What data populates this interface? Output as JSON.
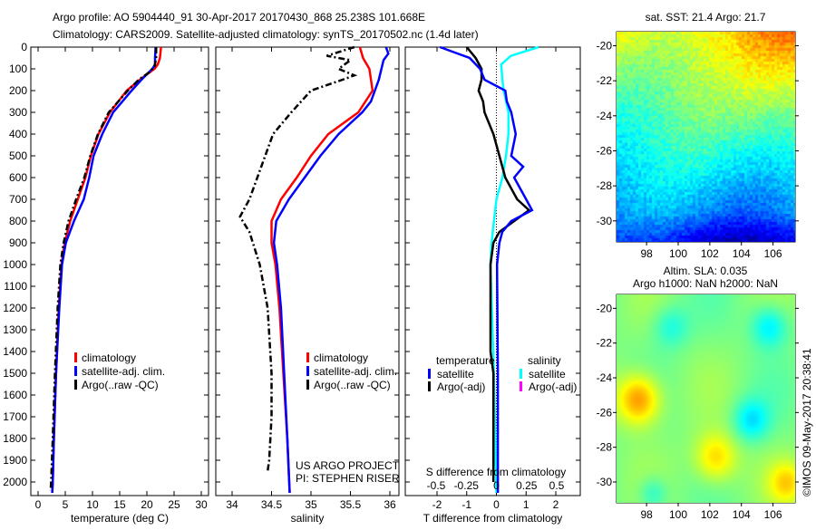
{
  "title": {
    "line1": "Argo profile: AO 5904440_91 30-Apr-2017 20170430_868 25.238S 101.668E",
    "line2": "Climatology: CARS2009. Satellite-adjusted climatology: synTS_20170502.nc (1.4d later)"
  },
  "colors": {
    "climatology": "#ff0000",
    "satellite": "#0000ff",
    "argo": "#000000",
    "sal_satellite": "#00ffff",
    "sal_argo": "#ff00ff"
  },
  "chart_data": [
    {
      "type": "line",
      "id": "temperature",
      "xlabel": "temperature (deg C)",
      "xlim": [
        -1,
        31
      ],
      "xticks": [
        "0",
        "5",
        "10",
        "15",
        "20",
        "25",
        "30"
      ],
      "xtick_values": [
        0,
        5,
        10,
        15,
        20,
        25,
        30
      ],
      "ylim": [
        0,
        2060
      ],
      "yticks": [
        "0",
        "100",
        "200",
        "300",
        "400",
        "500",
        "600",
        "700",
        "800",
        "900",
        "1000",
        "1100",
        "1200",
        "1300",
        "1400",
        "1500",
        "1600",
        "1700",
        "1800",
        "1900",
        "2000"
      ],
      "legend": [
        "climatology",
        "satellite-adj. clim.",
        "Argo(..raw -QC)"
      ],
      "series": [
        {
          "name": "climatology",
          "depth": [
            0,
            50,
            80,
            100,
            150,
            200,
            300,
            400,
            500,
            600,
            700,
            800,
            900,
            1000,
            1200,
            1500,
            1800,
            2000,
            2050
          ],
          "values": [
            22.6,
            22.4,
            22.0,
            21.4,
            18.7,
            16.3,
            13.2,
            11.1,
            9.7,
            8.7,
            7.3,
            5.9,
            4.9,
            4.3,
            3.8,
            3.3,
            2.9,
            2.7,
            2.6
          ]
        },
        {
          "name": "satellite-adj. clim.",
          "depth": [
            0,
            50,
            80,
            100,
            150,
            200,
            300,
            400,
            500,
            600,
            700,
            800,
            900,
            1000,
            1200,
            1500,
            1800,
            2000,
            2050
          ],
          "values": [
            21.6,
            21.5,
            21.5,
            21.0,
            19.0,
            17.2,
            13.8,
            11.8,
            10.2,
            9.4,
            8.4,
            6.6,
            5.1,
            4.4,
            3.9,
            3.3,
            2.9,
            2.7,
            2.6
          ]
        },
        {
          "name": "Argo(..raw -QC)",
          "depth": [
            0,
            50,
            90,
            120,
            150,
            200,
            300,
            400,
            500,
            600,
            700,
            800,
            900,
            1000,
            1200,
            1500,
            1800,
            2000,
            2040
          ],
          "values": [
            21.7,
            21.7,
            21.4,
            20.2,
            18.5,
            16.5,
            13.0,
            11.0,
            9.6,
            8.5,
            7.0,
            5.6,
            4.7,
            4.1,
            3.6,
            3.1,
            2.7,
            2.4,
            2.3
          ]
        }
      ]
    },
    {
      "type": "line",
      "id": "salinity",
      "xlabel": "salinity",
      "xlim": [
        33.8,
        36.1
      ],
      "xticks": [
        "34",
        "34.5",
        "35",
        "35.5",
        "36"
      ],
      "xtick_values": [
        34,
        34.5,
        35,
        35.5,
        36
      ],
      "ylim": [
        0,
        2060
      ],
      "legend": [
        "climatology",
        "satellite-adj. clim.",
        "Argo(..raw -QC)"
      ],
      "annotation": [
        "US ARGO PROJECT",
        "PI: STEPHEN RISER"
      ],
      "series": [
        {
          "name": "climatology",
          "depth": [
            0,
            50,
            100,
            200,
            300,
            400,
            500,
            600,
            700,
            800,
            900,
            1000,
            1200,
            1500,
            1800,
            2050
          ],
          "values": [
            35.62,
            35.66,
            35.74,
            35.78,
            35.6,
            35.22,
            35.0,
            34.82,
            34.62,
            34.5,
            34.5,
            34.55,
            34.6,
            34.65,
            34.7,
            34.73
          ]
        },
        {
          "name": "satellite-adj. clim.",
          "depth": [
            0,
            30,
            60,
            150,
            250,
            300,
            400,
            500,
            600,
            700,
            800,
            900,
            1000,
            1200,
            1500,
            1800,
            2050
          ],
          "values": [
            35.95,
            35.98,
            35.92,
            35.86,
            35.76,
            35.65,
            35.35,
            35.12,
            34.92,
            34.72,
            34.56,
            34.53,
            34.57,
            34.62,
            34.66,
            34.7,
            34.73
          ]
        },
        {
          "name": "Argo(..raw -QC)",
          "depth": [
            0,
            40,
            60,
            100,
            130,
            150,
            200,
            300,
            400,
            500,
            600,
            700,
            780,
            850,
            1000,
            1200,
            1500,
            1700,
            1900,
            1950
          ],
          "values": [
            35.55,
            35.2,
            35.5,
            35.35,
            35.55,
            35.4,
            35.0,
            34.75,
            34.52,
            34.42,
            34.32,
            34.22,
            34.1,
            34.22,
            34.35,
            34.45,
            34.5,
            34.5,
            34.47,
            34.45
          ]
        }
      ]
    },
    {
      "type": "line",
      "id": "difference",
      "xlabel": "T difference from climatology",
      "xlim": [
        -3,
        3
      ],
      "xticks": [
        "-2",
        "-1",
        "0",
        "1",
        "2"
      ],
      "xtick_values": [
        -2,
        -1,
        0,
        1,
        2
      ],
      "secondary_xlabel": "S difference from climatology",
      "secondary_xticks": [
        "-0.5",
        "-0.25",
        "0",
        "0.25",
        "0.5"
      ],
      "secondary_xtick_values": [
        -0.5,
        -0.25,
        0,
        0.25,
        0.5
      ],
      "ylim": [
        0,
        2060
      ],
      "legend_temperature": {
        "title": "temperature",
        "items": [
          "satellite",
          "Argo(-adj)"
        ]
      },
      "legend_salinity": {
        "title": "salinity",
        "items": [
          "satellite",
          "Argo(-adj)"
        ]
      },
      "series": [
        {
          "name": "temperature satellite",
          "units": "T",
          "depth": [
            0,
            50,
            100,
            150,
            200,
            250,
            300,
            400,
            500,
            550,
            600,
            700,
            750,
            800,
            850,
            900,
            1000,
            1500,
            2050
          ],
          "values": [
            -1.9,
            -0.9,
            -0.55,
            -0.4,
            0.3,
            0.35,
            0.5,
            0.65,
            0.5,
            0.9,
            0.6,
            1.0,
            1.2,
            0.5,
            0.2,
            0.1,
            0.02,
            0.05,
            0.05
          ]
        },
        {
          "name": "temperature Argo(-adj)",
          "units": "T",
          "depth": [
            0,
            50,
            100,
            150,
            200,
            250,
            300,
            400,
            500,
            600,
            700,
            750,
            800,
            850,
            900,
            1000,
            1200,
            1400,
            1500,
            2000
          ],
          "values": [
            -1.0,
            -0.7,
            -0.5,
            -0.5,
            -0.6,
            -0.45,
            -0.4,
            -0.1,
            0.1,
            0.3,
            0.7,
            1.1,
            0.6,
            0.1,
            -0.1,
            -0.2,
            -0.2,
            -0.2,
            -0.1,
            -0.1
          ]
        },
        {
          "name": "salinity satellite",
          "units": "S",
          "depth": [
            0,
            40,
            80,
            150,
            200,
            300,
            400,
            500,
            600,
            700,
            800,
            900,
            1000,
            1500,
            2050
          ],
          "values": [
            0.35,
            0.12,
            0.04,
            0.05,
            0.06,
            0.1,
            0.1,
            0.08,
            0.05,
            0.0,
            -0.02,
            -0.04,
            -0.05,
            -0.02,
            0.0
          ]
        }
      ]
    },
    {
      "type": "heatmap",
      "id": "sst-map",
      "title": "sat. SST: 21.4 Argo: 21.7",
      "xticks": [
        "98",
        "100",
        "102",
        "104",
        "106"
      ],
      "xtick_values": [
        98,
        100,
        102,
        104,
        106
      ],
      "yticks": [
        "-20",
        "-22",
        "-24",
        "-26",
        "-28",
        "-30"
      ],
      "ytick_values": [
        -20,
        -22,
        -24,
        -26,
        -28,
        -30
      ],
      "xlim": [
        96.1,
        107.4
      ],
      "ylim": [
        -31.2,
        -19.2
      ]
    },
    {
      "type": "heatmap",
      "id": "sla-map",
      "title": "Altim. SLA: 0.035",
      "subtitle": "Argo h1000: NaN h2000: NaN",
      "xticks": [
        "98",
        "100",
        "102",
        "104",
        "106"
      ],
      "xtick_values": [
        98,
        100,
        102,
        104,
        106
      ],
      "yticks": [
        "-20",
        "-22",
        "-24",
        "-26",
        "-28",
        "-30"
      ],
      "ytick_values": [
        -20,
        -22,
        -24,
        -26,
        -28,
        -30
      ],
      "xlim": [
        96.1,
        107.4
      ],
      "ylim": [
        -31.2,
        -19.2
      ]
    }
  ],
  "footer": {
    "credit": "©IMOS 09-May-2017 20:38:41"
  }
}
